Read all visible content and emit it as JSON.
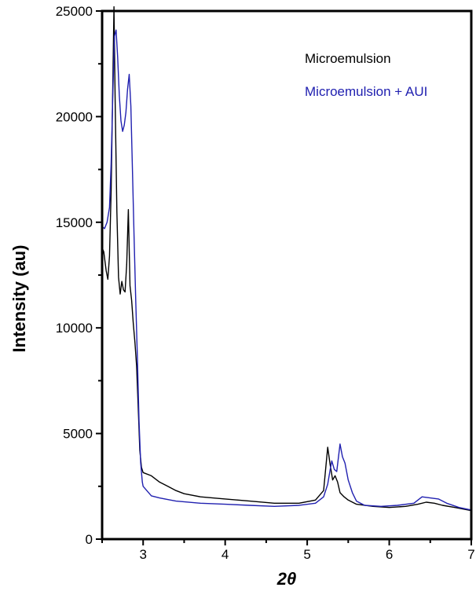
{
  "chart_data": {
    "type": "line",
    "title": "",
    "xlabel": "2θ",
    "ylabel": "Intensity (au)",
    "xlim": [
      2.5,
      7
    ],
    "ylim": [
      0,
      25000
    ],
    "x_ticks": [
      3,
      4,
      5,
      6,
      7
    ],
    "x_minor_ticks": [
      2.5,
      3.5,
      4.5,
      5.5,
      6.5
    ],
    "y_ticks": [
      0,
      5000,
      10000,
      15000,
      20000,
      25000
    ],
    "y_minor_ticks": [
      2500,
      7500,
      12500,
      17500,
      22500
    ],
    "grid": false,
    "legend_position": "top-right",
    "series": [
      {
        "name": "Microemulsion",
        "color": "#000000",
        "points": [
          [
            2.5,
            13800
          ],
          [
            2.52,
            13600
          ],
          [
            2.55,
            12700
          ],
          [
            2.57,
            12300
          ],
          [
            2.59,
            13400
          ],
          [
            2.61,
            16500
          ],
          [
            2.63,
            21500
          ],
          [
            2.645,
            25200
          ],
          [
            2.66,
            20500
          ],
          [
            2.68,
            15500
          ],
          [
            2.7,
            12400
          ],
          [
            2.72,
            11600
          ],
          [
            2.74,
            12200
          ],
          [
            2.76,
            11800
          ],
          [
            2.78,
            11700
          ],
          [
            2.8,
            13000
          ],
          [
            2.82,
            15600
          ],
          [
            2.84,
            12000
          ],
          [
            2.86,
            11300
          ],
          [
            2.88,
            10200
          ],
          [
            2.9,
            9300
          ],
          [
            2.92,
            8200
          ],
          [
            2.94,
            6200
          ],
          [
            2.96,
            4200
          ],
          [
            2.98,
            3400
          ],
          [
            3.0,
            3150
          ],
          [
            3.1,
            3000
          ],
          [
            3.2,
            2700
          ],
          [
            3.3,
            2500
          ],
          [
            3.4,
            2300
          ],
          [
            3.5,
            2150
          ],
          [
            3.7,
            2000
          ],
          [
            4.0,
            1900
          ],
          [
            4.3,
            1800
          ],
          [
            4.6,
            1700
          ],
          [
            4.9,
            1700
          ],
          [
            5.1,
            1850
          ],
          [
            5.2,
            2300
          ],
          [
            5.25,
            4350
          ],
          [
            5.28,
            3500
          ],
          [
            5.31,
            2800
          ],
          [
            5.34,
            3000
          ],
          [
            5.37,
            2700
          ],
          [
            5.4,
            2200
          ],
          [
            5.45,
            2000
          ],
          [
            5.5,
            1850
          ],
          [
            5.6,
            1650
          ],
          [
            5.8,
            1550
          ],
          [
            6.0,
            1500
          ],
          [
            6.2,
            1550
          ],
          [
            6.35,
            1650
          ],
          [
            6.45,
            1750
          ],
          [
            6.55,
            1700
          ],
          [
            6.65,
            1600
          ],
          [
            6.8,
            1500
          ],
          [
            7.0,
            1350
          ]
        ]
      },
      {
        "name": "Microemulsion + AUI",
        "color": "#2020b0",
        "points": [
          [
            2.5,
            14800
          ],
          [
            2.53,
            14700
          ],
          [
            2.56,
            15000
          ],
          [
            2.59,
            15700
          ],
          [
            2.61,
            17800
          ],
          [
            2.63,
            21000
          ],
          [
            2.65,
            23800
          ],
          [
            2.67,
            24100
          ],
          [
            2.69,
            22800
          ],
          [
            2.71,
            21000
          ],
          [
            2.73,
            19800
          ],
          [
            2.75,
            19300
          ],
          [
            2.77,
            19600
          ],
          [
            2.79,
            20200
          ],
          [
            2.81,
            21300
          ],
          [
            2.83,
            22000
          ],
          [
            2.85,
            20500
          ],
          [
            2.87,
            17500
          ],
          [
            2.89,
            14300
          ],
          [
            2.91,
            11300
          ],
          [
            2.93,
            8600
          ],
          [
            2.95,
            5600
          ],
          [
            2.97,
            3600
          ],
          [
            2.99,
            2700
          ],
          [
            3.0,
            2500
          ],
          [
            3.1,
            2050
          ],
          [
            3.2,
            1950
          ],
          [
            3.4,
            1800
          ],
          [
            3.7,
            1700
          ],
          [
            4.0,
            1650
          ],
          [
            4.3,
            1600
          ],
          [
            4.6,
            1550
          ],
          [
            4.9,
            1600
          ],
          [
            5.1,
            1700
          ],
          [
            5.2,
            2000
          ],
          [
            5.25,
            2600
          ],
          [
            5.28,
            3300
          ],
          [
            5.3,
            3700
          ],
          [
            5.33,
            3300
          ],
          [
            5.36,
            3200
          ],
          [
            5.4,
            4500
          ],
          [
            5.43,
            3900
          ],
          [
            5.46,
            3600
          ],
          [
            5.5,
            2800
          ],
          [
            5.55,
            2200
          ],
          [
            5.6,
            1800
          ],
          [
            5.7,
            1600
          ],
          [
            5.9,
            1550
          ],
          [
            6.1,
            1600
          ],
          [
            6.3,
            1700
          ],
          [
            6.4,
            2000
          ],
          [
            6.5,
            1950
          ],
          [
            6.6,
            1900
          ],
          [
            6.7,
            1700
          ],
          [
            6.85,
            1500
          ],
          [
            7.0,
            1380
          ]
        ]
      }
    ]
  }
}
